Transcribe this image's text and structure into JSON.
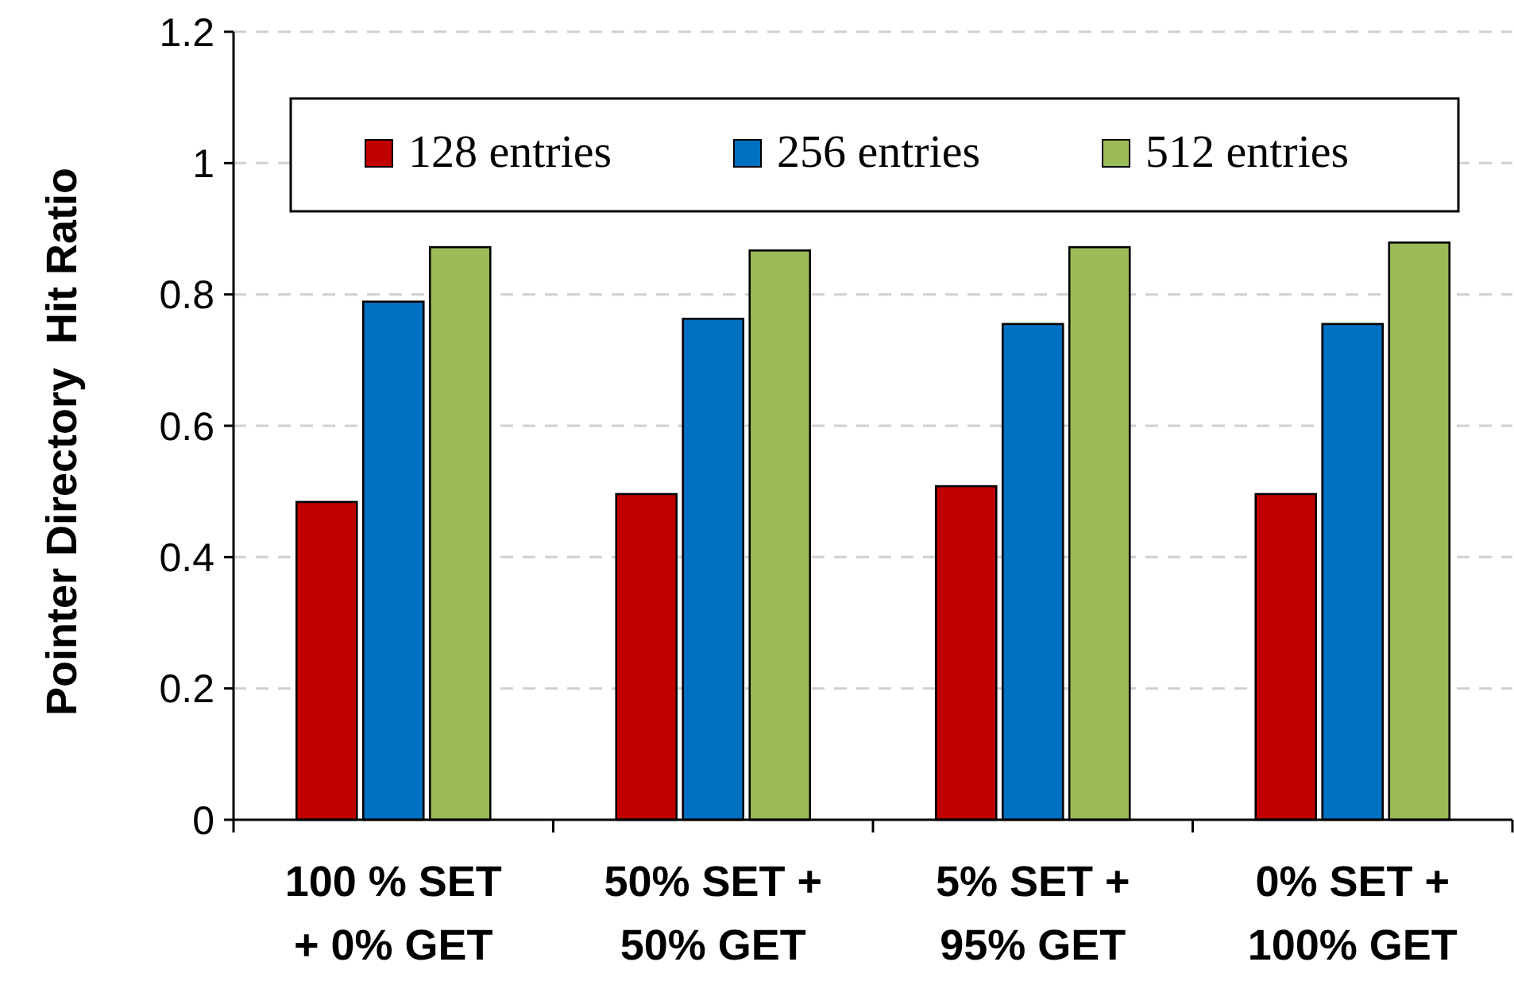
{
  "chart_data": {
    "type": "bar",
    "ylabel": "Pointer Directory  Hit Ratio",
    "categories": [
      "100 % SET\n+ 0% GET",
      "50% SET +\n50% GET",
      "5% SET +\n95% GET",
      "0% SET +\n100% GET"
    ],
    "series": [
      {
        "name": "128 entries",
        "color": "#c00000",
        "values": [
          0.484,
          0.496,
          0.508,
          0.496
        ]
      },
      {
        "name": "256 entries",
        "color": "#0070c0",
        "values": [
          0.789,
          0.763,
          0.755,
          0.755
        ]
      },
      {
        "name": "512 entries",
        "color": "#9bbb59",
        "values": [
          0.872,
          0.867,
          0.872,
          0.879
        ]
      }
    ],
    "ylim": [
      0,
      1.2
    ],
    "yticks": [
      0,
      0.2,
      0.4,
      0.6,
      0.8,
      1,
      1.2
    ],
    "grid": "y",
    "legend": "top"
  }
}
